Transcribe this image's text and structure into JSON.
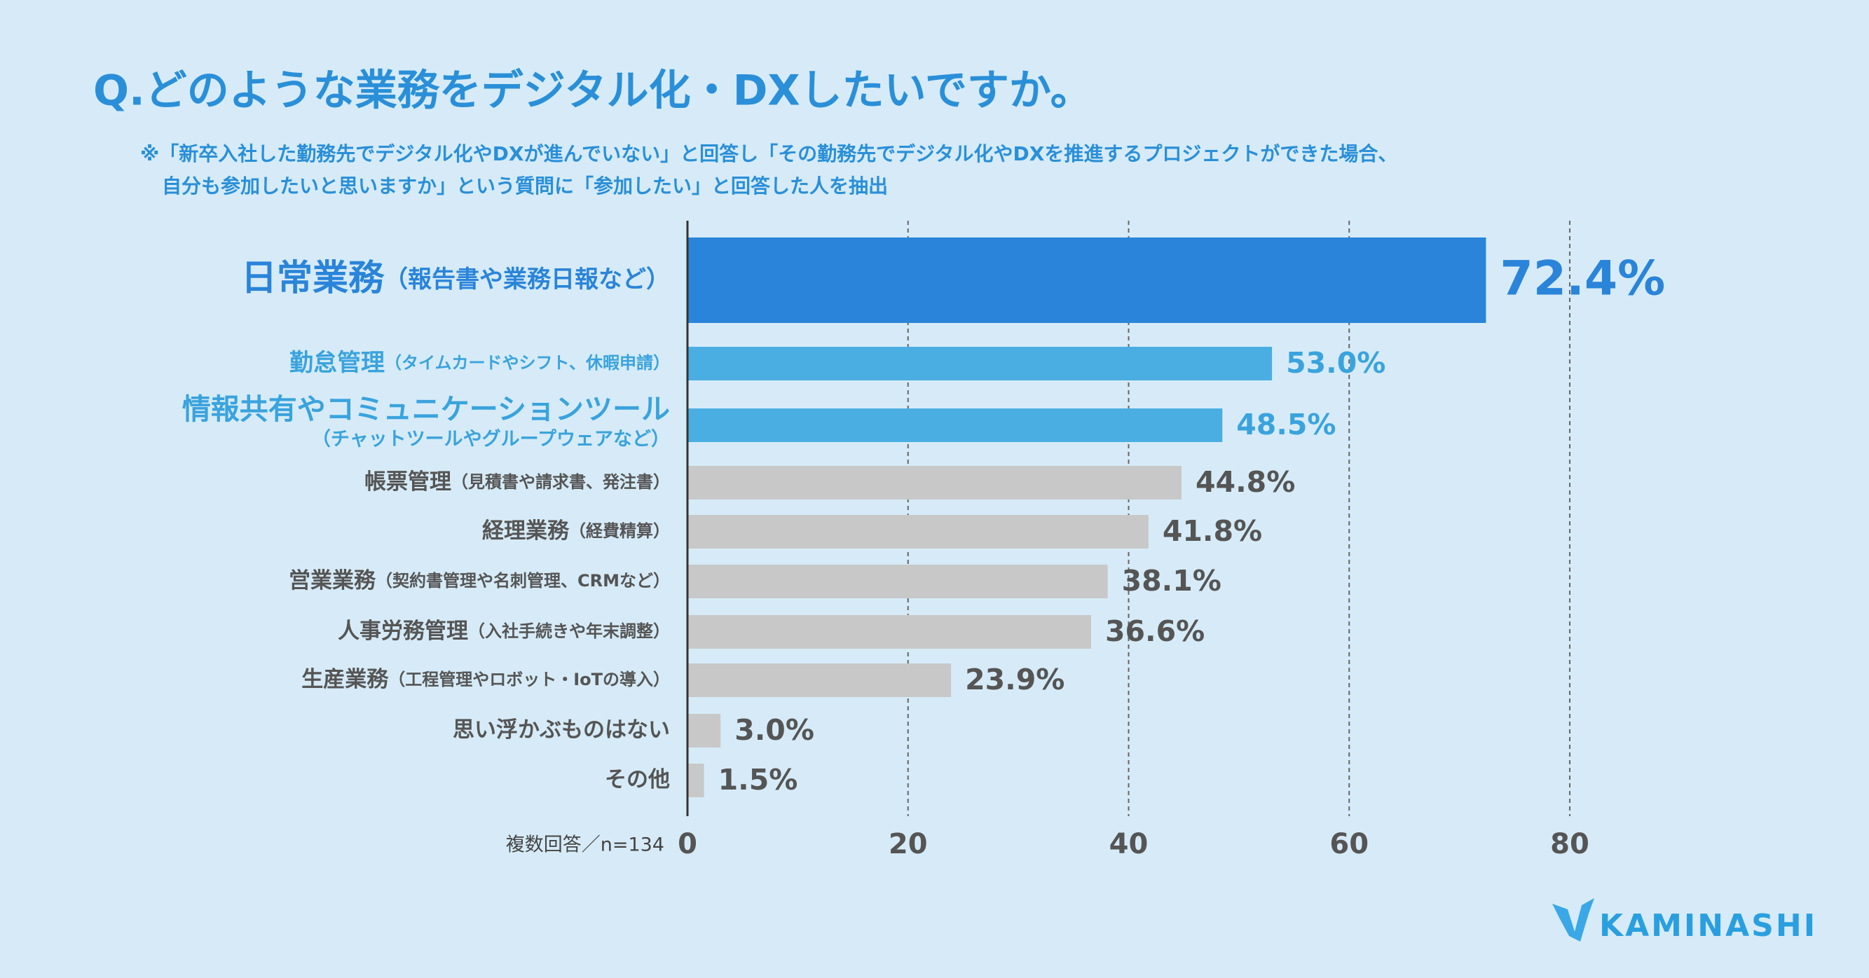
{
  "chart_data": {
    "type": "hbar",
    "title": "Q.どのような業務をデジタル化・DXしたいですか。",
    "subtitle": [
      "※「新卒入社した勤務先でデジタル化やDXが進んでいない」と回答し「その勤務先でデジタル化やDXを推進するプロジェクトができた場合、",
      "自分も参加したいと思いますか」という質問に「参加したい」と回答した人を抽出"
    ],
    "categories": [
      "日常業務",
      "勤怠管理",
      "情報共有やコミュニケーションツール",
      "帳票管理",
      "経理業務",
      "営業業務",
      "人事労務管理",
      "生産業務",
      "思い浮かぶものはない",
      "その他"
    ],
    "category_notes": [
      "（報告書や業務日報など）",
      "（タイムカードやシフト、休暇申請）",
      "（チャットツールやグループウェアなど）",
      "（見積書や請求書、発注書）",
      "（経費精算）",
      "（契約書管理や名刺管理、CRMなど）",
      "（入社手続きや年末調整）",
      "（工程管理やロボット・IoTの導入）",
      null,
      null
    ],
    "values": [
      72.4,
      53.0,
      48.5,
      44.8,
      41.8,
      38.1,
      36.6,
      23.9,
      3.0,
      1.5
    ],
    "value_labels": [
      "72.4%",
      "53.0%",
      "48.5%",
      "44.8%",
      "41.8%",
      "38.1%",
      "36.6%",
      "23.9%",
      "3.0%",
      "1.5%"
    ],
    "colors": [
      "#2a84d9",
      "#4aaee2",
      "#4aaee2",
      "#c8c8c8",
      "#c8c8c8",
      "#c8c8c8",
      "#c8c8c8",
      "#c8c8c8",
      "#c8c8c8",
      "#c8c8c8"
    ],
    "xlim": [
      0,
      80
    ],
    "xticks": [
      0,
      20,
      40,
      60,
      80
    ],
    "grid": true,
    "note": "複数回答／n=134",
    "brand": "KAMINASHI"
  }
}
